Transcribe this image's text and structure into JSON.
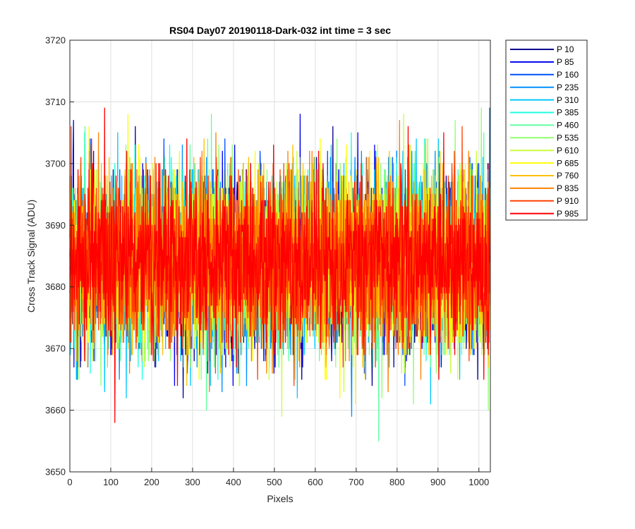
{
  "chart_data": {
    "type": "line",
    "title": "RS04 Day07 20190118-Dark-032 int time = 3 sec",
    "xlabel": "Pixels",
    "ylabel": "Cross Track Signal (ADU)",
    "xlim": [
      0,
      1028
    ],
    "ylim": [
      3650,
      3720
    ],
    "xticks": [
      0,
      100,
      200,
      300,
      400,
      500,
      600,
      700,
      800,
      900,
      1000
    ],
    "yticks": [
      3650,
      3660,
      3670,
      3680,
      3690,
      3700,
      3710,
      3720
    ],
    "grid": true,
    "legend_position": "outside-top-right",
    "series_profile": {
      "n_points": 1028,
      "mean": 3684,
      "spread_sd": 7,
      "min": 3652,
      "max": 3711,
      "note": "per-pixel noise around mean"
    },
    "series": [
      {
        "name": "P 10",
        "color": "#00008f"
      },
      {
        "name": "P 85",
        "color": "#0000ef"
      },
      {
        "name": "P 160",
        "color": "#0050ff"
      },
      {
        "name": "P 235",
        "color": "#0090ff"
      },
      {
        "name": "P 310",
        "color": "#00c8ff"
      },
      {
        "name": "P 385",
        "color": "#1fffe0"
      },
      {
        "name": "P 460",
        "color": "#60ffa0"
      },
      {
        "name": "P 535",
        "color": "#90ff70"
      },
      {
        "name": "P 610",
        "color": "#c8ff38"
      },
      {
        "name": "P 685",
        "color": "#ffff00"
      },
      {
        "name": "P 760",
        "color": "#ffc000"
      },
      {
        "name": "P 835",
        "color": "#ff8000"
      },
      {
        "name": "P 910",
        "color": "#ff4000"
      },
      {
        "name": "P 985",
        "color": "#ff0000"
      }
    ]
  }
}
